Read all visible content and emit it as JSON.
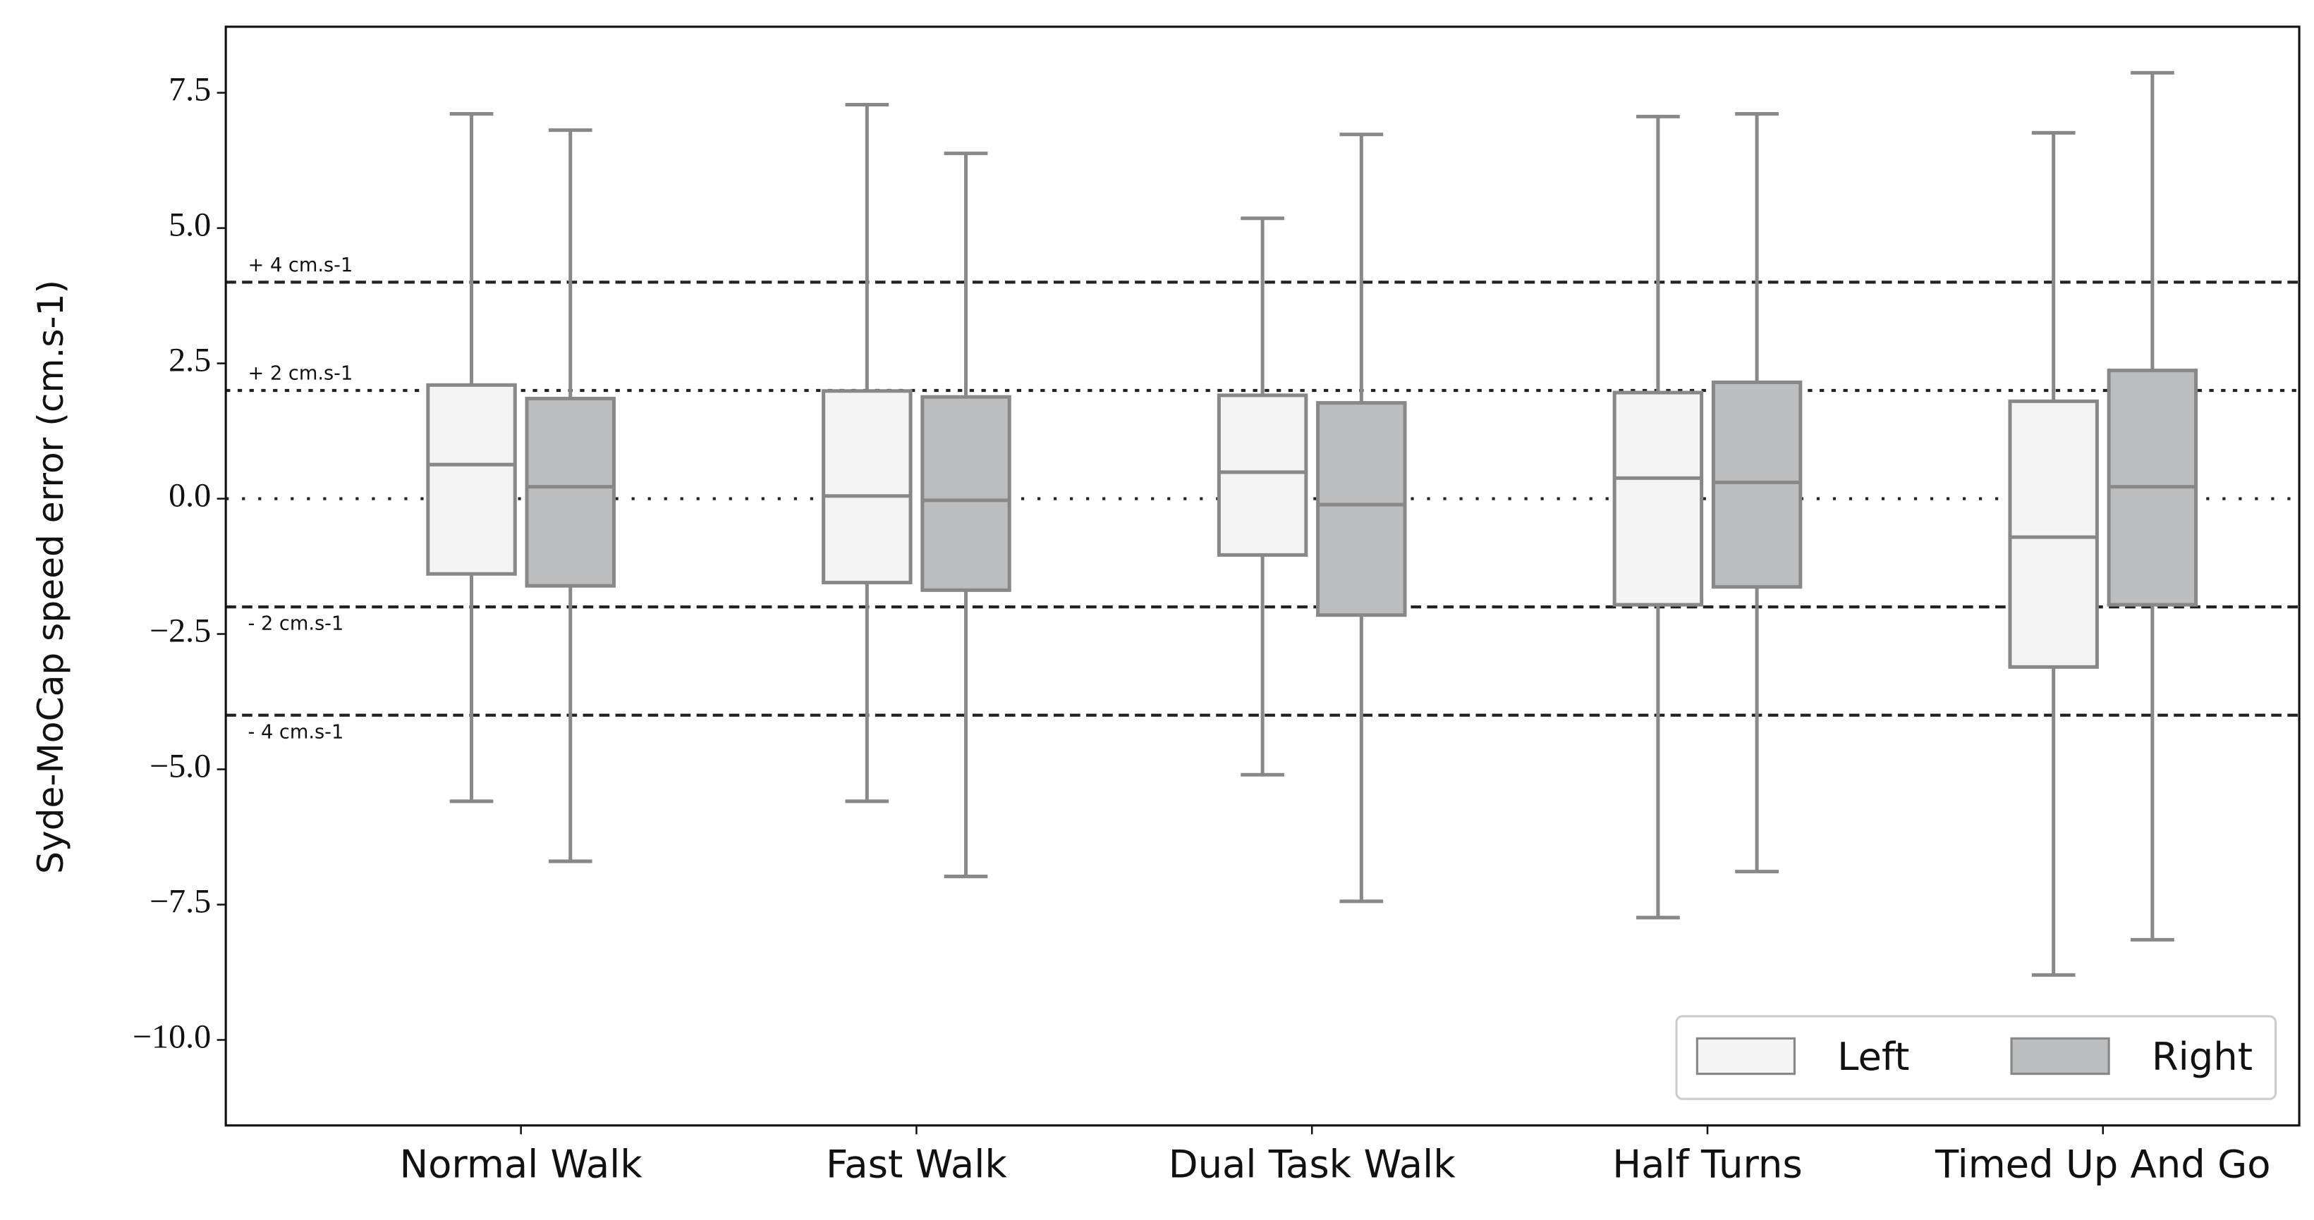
{
  "chart_data": {
    "type": "box",
    "y_label": "Syde-MoCap speed error (cm.s-1)",
    "categories": [
      "Normal Walk",
      "Fast Walk",
      "Dual Task Walk",
      "Half Turns",
      "Timed Up And Go"
    ],
    "series": [
      {
        "name": "Left",
        "color": "#f4f4f4",
        "edge_color": "#888888",
        "whisker_high": [
          7.11,
          7.28,
          5.18,
          7.06,
          6.76
        ],
        "q3": [
          2.1,
          1.99,
          1.91,
          1.96,
          1.8
        ],
        "median": [
          0.63,
          0.05,
          0.49,
          0.38,
          -0.71
        ],
        "q1": [
          -1.39,
          -1.55,
          -1.04,
          -1.96,
          -3.11
        ],
        "whisker_low": [
          -5.59,
          -5.59,
          -5.1,
          -7.74,
          -8.8
        ]
      },
      {
        "name": "Right",
        "color": "#bcbdbe",
        "edge_color": "#888888",
        "whisker_high": [
          6.81,
          6.38,
          6.73,
          7.11,
          7.87
        ],
        "q3": [
          1.85,
          1.88,
          1.77,
          2.15,
          2.37
        ],
        "median": [
          0.22,
          -0.03,
          -0.11,
          0.3,
          0.22
        ],
        "q1": [
          -1.61,
          -1.69,
          -2.15,
          -1.63,
          -1.96
        ],
        "whisker_low": [
          -6.7,
          -6.98,
          -7.44,
          -6.89,
          -8.15
        ]
      }
    ],
    "reference_lines": [
      {
        "value": 4,
        "label": "+ 4 cm.s-1",
        "style": "dashed"
      },
      {
        "value": 2,
        "label": "+ 2 cm.s-1",
        "style": "dotted"
      },
      {
        "value": 0,
        "style": "sparse-dotted"
      },
      {
        "value": -2,
        "label": "- 2 cm.s-1",
        "style": "dashed"
      },
      {
        "value": -4,
        "label": "- 4 cm.s-1",
        "style": "dashed"
      }
    ],
    "ylim": [
      -11.58,
      8.72
    ],
    "yticks": [
      7.5,
      {
        "value": 5,
        "label": "5.0"
      },
      2.5,
      {
        "value": 0,
        "label": "0.0"
      },
      {
        "value": -2.5,
        "label": "−2.5"
      },
      {
        "value": -5,
        "label": "−5.0"
      },
      {
        "value": -7.5,
        "label": "−7.5"
      },
      {
        "value": -10,
        "label": "−10.0"
      }
    ],
    "legend_position": "lower right",
    "grid": false
  }
}
